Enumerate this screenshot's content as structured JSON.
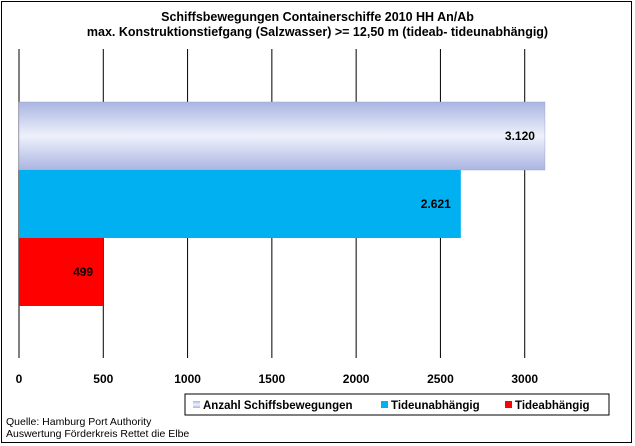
{
  "title_line1": "Schiffsbewegungen  Containerschiffe  2010 HH An/Ab",
  "title_line2": "max. Konstruktionstiefgang  (Salzwasser)  >= 12,50 m (tideab-  tideunabhängig)",
  "source_line1": "Quelle: Hamburg Port Authority",
  "source_line2": "Auswertung Förderkreis Rettet die Elbe",
  "chart_data": {
    "type": "bar",
    "orientation": "horizontal",
    "title": "Schiffsbewegungen  Containerschiffe  2010 HH An/Ab — max. Konstruktionstiefgang  (Salzwasser)  >= 12,50 m (tideab-  tideunabhängig)",
    "xlim": [
      0,
      3500
    ],
    "xticks": [
      0,
      500,
      1000,
      1500,
      2000,
      2500,
      3000
    ],
    "grid": "vertical",
    "legend": "bottom",
    "series": [
      {
        "name": "Anzahl Schiffsbewegungen",
        "value": 3120,
        "label": "3.120",
        "color": "#b4bfe6"
      },
      {
        "name": "Tideunabhängig",
        "value": 2621,
        "label": "2.621",
        "color": "#00b0f0"
      },
      {
        "name": "Tideabhängig",
        "value": 499,
        "label": "499",
        "color": "#ff0000"
      }
    ]
  }
}
